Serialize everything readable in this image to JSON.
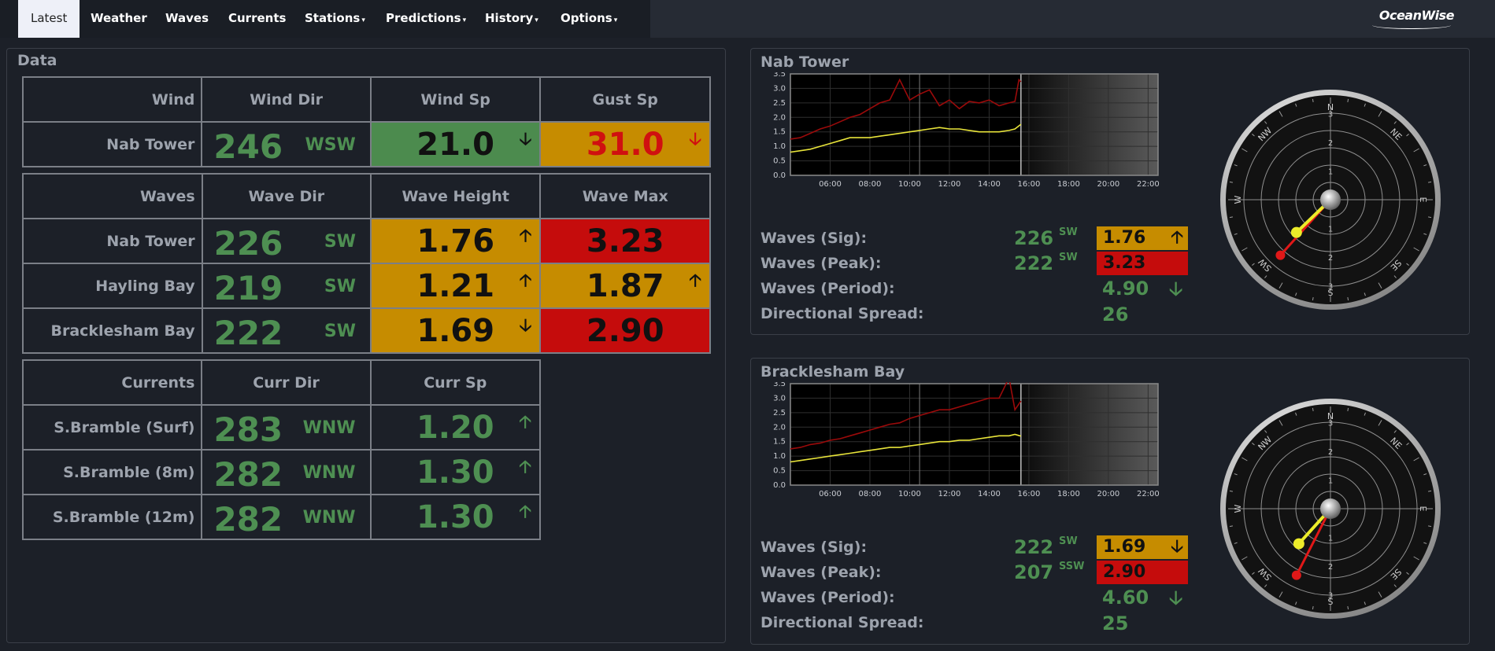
{
  "nav": {
    "items": [
      {
        "label": "Latest",
        "active": true
      },
      {
        "label": "Weather"
      },
      {
        "label": "Waves"
      },
      {
        "label": "Currents"
      },
      {
        "label": "Stations",
        "dropdown": true
      },
      {
        "label": "Predictions",
        "dropdown": true
      },
      {
        "label": "History",
        "dropdown": true
      },
      {
        "label": "Options",
        "dropdown": true
      }
    ],
    "logo": "OceanWise"
  },
  "data_panel": {
    "title": "Data",
    "wind": {
      "headers": [
        "Wind",
        "Wind Dir",
        "Wind Sp",
        "Gust Sp"
      ],
      "rows": [
        {
          "station": "Nab Tower",
          "dir": "246",
          "dir_text": "WSW",
          "sp": "21.0",
          "sp_arrow": "down",
          "gust": "31.0",
          "gust_arrow": "down"
        }
      ]
    },
    "waves": {
      "headers": [
        "Waves",
        "Wave Dir",
        "Wave Height",
        "Wave Max"
      ],
      "rows": [
        {
          "station": "Nab Tower",
          "dir": "226",
          "dir_text": "SW",
          "height": "1.76",
          "height_arrow": "up",
          "max": "3.23"
        },
        {
          "station": "Hayling Bay",
          "dir": "219",
          "dir_text": "SW",
          "height": "1.21",
          "height_arrow": "up",
          "max": "1.87",
          "max_arrow": "up"
        },
        {
          "station": "Bracklesham Bay",
          "dir": "222",
          "dir_text": "SW",
          "height": "1.69",
          "height_arrow": "down",
          "max": "2.90"
        }
      ]
    },
    "currents": {
      "headers": [
        "Currents",
        "Curr Dir",
        "Curr Sp"
      ],
      "rows": [
        {
          "station": "S.Bramble (Surf)",
          "dir": "283",
          "dir_text": "WNW",
          "sp": "1.20",
          "sp_arrow": "up"
        },
        {
          "station": "S.Bramble (8m)",
          "dir": "282",
          "dir_text": "WNW",
          "sp": "1.30",
          "sp_arrow": "up"
        },
        {
          "station": "S.Bramble (12m)",
          "dir": "282",
          "dir_text": "WNW",
          "sp": "1.30",
          "sp_arrow": "up"
        }
      ]
    }
  },
  "stations": [
    {
      "title": "Nab Tower",
      "labels": [
        "Waves (Sig):",
        "Waves (Peak):",
        "Waves (Period):",
        "Directional Spread:"
      ],
      "sig_dir": "226",
      "sig_dir_text": "SW",
      "sig_val": "1.76",
      "sig_arrow": "up",
      "peak_dir": "222",
      "peak_dir_text": "SW",
      "peak_val": "3.23",
      "period": "4.90",
      "period_arrow": "down",
      "spread": "26",
      "compass_labels": [
        "N",
        "NE",
        "E",
        "SE",
        "S",
        "SW",
        "W",
        "NW"
      ]
    },
    {
      "title": "Bracklesham Bay",
      "labels": [
        "Waves (Sig):",
        "Waves (Peak):",
        "Waves (Period):",
        "Directional Spread:"
      ],
      "sig_dir": "222",
      "sig_dir_text": "SW",
      "sig_val": "1.69",
      "sig_arrow": "down",
      "peak_dir": "207",
      "peak_dir_text": "SSW",
      "peak_val": "2.90",
      "period": "4.60",
      "period_arrow": "down",
      "spread": "25",
      "compass_labels": [
        "N",
        "NE",
        "E",
        "SE",
        "S",
        "SW",
        "W",
        "NW"
      ]
    }
  ],
  "chart_data": [
    {
      "type": "line",
      "x_ticks": [
        "06:00",
        "08:00",
        "10:00",
        "12:00",
        "14:00",
        "16:00",
        "18:00",
        "20:00",
        "22:00"
      ],
      "y_ticks": [
        "0.0",
        "0.5",
        "1.0",
        "1.5",
        "2.0",
        "2.5",
        "3.0",
        "3.5"
      ],
      "ylim": [
        0,
        3.5
      ],
      "xlim_hours": [
        4,
        22.5
      ],
      "now_hour": 15.6,
      "series": [
        {
          "color": "#9b0a0a",
          "x": [
            4,
            4.5,
            5,
            5.5,
            6,
            6.5,
            7,
            7.5,
            8,
            8.5,
            9,
            9.5,
            10,
            10.5,
            11,
            11.5,
            12,
            12.5,
            13,
            13.5,
            14,
            14.5,
            15,
            15.3,
            15.5,
            15.6
          ],
          "values": [
            1.25,
            1.3,
            1.45,
            1.6,
            1.7,
            1.85,
            2.0,
            2.1,
            2.3,
            2.5,
            2.6,
            3.3,
            2.6,
            2.8,
            2.95,
            2.4,
            2.6,
            2.3,
            2.55,
            2.5,
            2.6,
            2.4,
            2.5,
            2.55,
            3.3,
            3.23
          ]
        },
        {
          "color": "#e8e43a",
          "x": [
            4,
            4.5,
            5,
            5.5,
            6,
            6.5,
            7,
            7.5,
            8,
            8.5,
            9,
            9.5,
            10,
            10.5,
            11,
            11.5,
            12,
            12.5,
            13,
            13.5,
            14,
            14.5,
            15,
            15.3,
            15.6
          ],
          "values": [
            0.8,
            0.85,
            0.9,
            1.0,
            1.1,
            1.2,
            1.3,
            1.3,
            1.3,
            1.35,
            1.4,
            1.45,
            1.5,
            1.55,
            1.6,
            1.65,
            1.6,
            1.6,
            1.55,
            1.5,
            1.5,
            1.5,
            1.55,
            1.6,
            1.76
          ]
        }
      ]
    },
    {
      "type": "line",
      "x_ticks": [
        "06:00",
        "08:00",
        "10:00",
        "12:00",
        "14:00",
        "16:00",
        "18:00",
        "20:00",
        "22:00"
      ],
      "y_ticks": [
        "0.0",
        "0.5",
        "1.0",
        "1.5",
        "2.0",
        "2.5",
        "3.0",
        "3.5"
      ],
      "ylim": [
        0,
        3.5
      ],
      "xlim_hours": [
        4,
        22.5
      ],
      "now_hour": 15.6,
      "series": [
        {
          "color": "#9b0a0a",
          "x": [
            4,
            4.5,
            5,
            5.5,
            6,
            6.5,
            7,
            7.5,
            8,
            8.5,
            9,
            9.5,
            10,
            10.5,
            11,
            11.5,
            12,
            12.5,
            13,
            13.5,
            14,
            14.5,
            15,
            15.3,
            15.6
          ],
          "values": [
            1.25,
            1.3,
            1.4,
            1.45,
            1.55,
            1.6,
            1.7,
            1.8,
            1.9,
            2.0,
            2.1,
            2.15,
            2.3,
            2.4,
            2.5,
            2.6,
            2.6,
            2.7,
            2.8,
            2.9,
            3.0,
            3.0,
            3.7,
            2.6,
            2.9
          ]
        },
        {
          "color": "#e8e43a",
          "x": [
            4,
            4.5,
            5,
            5.5,
            6,
            6.5,
            7,
            7.5,
            8,
            8.5,
            9,
            9.5,
            10,
            10.5,
            11,
            11.5,
            12,
            12.5,
            13,
            13.5,
            14,
            14.5,
            15,
            15.3,
            15.6
          ],
          "values": [
            0.8,
            0.85,
            0.9,
            0.95,
            1.0,
            1.05,
            1.1,
            1.15,
            1.2,
            1.25,
            1.3,
            1.3,
            1.35,
            1.4,
            1.45,
            1.5,
            1.5,
            1.55,
            1.55,
            1.6,
            1.65,
            1.7,
            1.7,
            1.75,
            1.69
          ]
        }
      ]
    }
  ]
}
